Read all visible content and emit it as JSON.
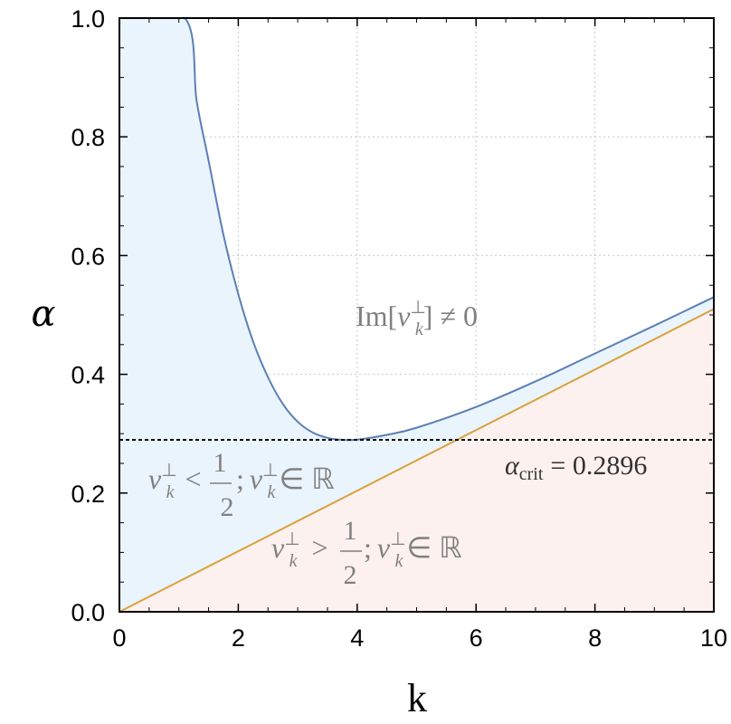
{
  "chart_data": {
    "type": "area",
    "xlabel": "k",
    "ylabel": "α",
    "xlim": [
      0,
      10
    ],
    "ylim": [
      0,
      1
    ],
    "x_ticks": [
      "0",
      "2",
      "4",
      "6",
      "8",
      "10"
    ],
    "y_ticks": [
      "0.0",
      "0.2",
      "0.4",
      "0.6",
      "0.8",
      "1.0"
    ],
    "x_tick_values": [
      0,
      2,
      4,
      6,
      8,
      10
    ],
    "y_tick_values": [
      0,
      0.2,
      0.4,
      0.6,
      0.8,
      1.0
    ],
    "grid": true,
    "colors": {
      "blue_curve": "#5b7fb5",
      "orange_curve": "#d9a13b",
      "blue_fill": "#eaf4fc",
      "pink_fill": "#fdf1ef",
      "dashed_line": "#000000"
    },
    "series": [
      {
        "color": "#5b7fb5",
        "x": [
          0,
          1.1,
          1.3,
          1.5,
          1.75,
          2.0,
          2.25,
          2.5,
          2.75,
          3.0,
          3.25,
          3.5,
          3.75,
          4.0,
          4.5,
          5.0,
          6.0,
          7.0,
          8.0,
          9.0,
          10.0
        ],
        "y": [
          1.0,
          1.0,
          0.86,
          0.76,
          0.635,
          0.535,
          0.455,
          0.395,
          0.35,
          0.32,
          0.302,
          0.293,
          0.2896,
          0.29,
          0.298,
          0.31,
          0.345,
          0.388,
          0.435,
          0.482,
          0.53
        ]
      },
      {
        "color": "#d9a13b",
        "x": [
          0,
          10
        ],
        "y": [
          0,
          0.51
        ]
      }
    ],
    "reference_line": {
      "y": 0.2896,
      "style": "dashed",
      "label": "α_crit = 0.2896"
    },
    "annotations": {
      "region_top": "Im[ν⊥k] ≠ 0",
      "region_left": "ν⊥k < 1/2; ν⊥k ∈ ℝ",
      "region_right": "ν⊥k > 1/2; ν⊥k ∈ ℝ",
      "im_prefix": "Im[",
      "im_suffix": "] ≠ 0",
      "nu": "ν",
      "perp": "⊥",
      "sub_k": "k",
      "less": "<",
      "greater": ">",
      "half_num": "1",
      "half_den": "2",
      "semicolon": ";",
      "elem_R": "∈ ℝ",
      "alpha": "α",
      "crit_sub": "crit",
      "crit_value": "= 0.2896"
    }
  }
}
